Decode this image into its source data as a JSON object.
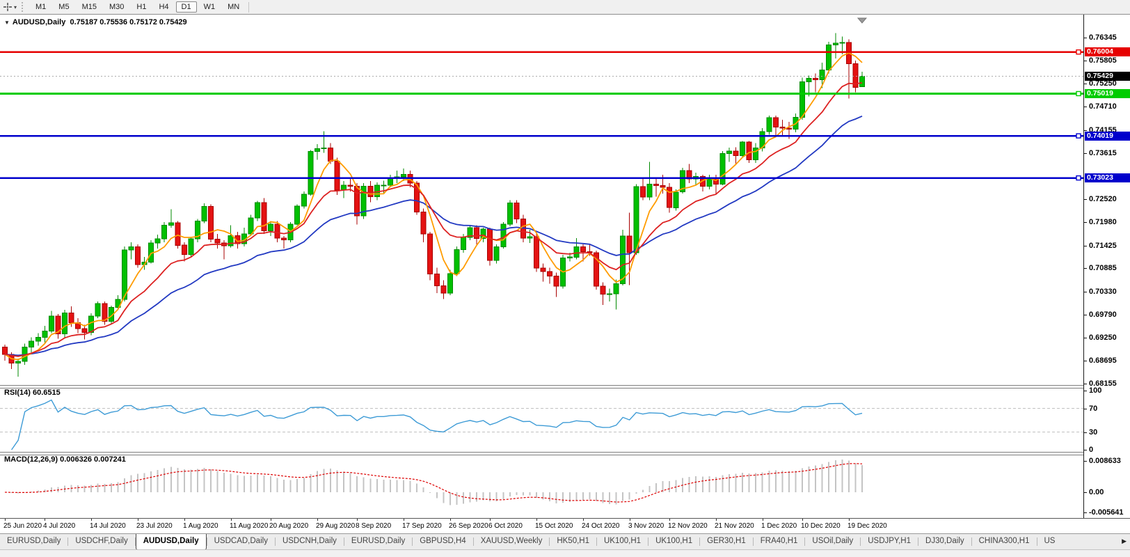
{
  "toolbar": {
    "tool_icon": "chart-crosshair",
    "dropdown_icon": "▾",
    "timeframes": [
      "M1",
      "M5",
      "M15",
      "M30",
      "H1",
      "H4",
      "D1",
      "W1",
      "MN"
    ],
    "active_timeframe": "D1"
  },
  "chart": {
    "collapse_icon": "▼",
    "title": "AUDUSD,Daily",
    "ohlc_text": "0.75187 0.75536 0.75172 0.75429",
    "scroll_marker_color": "#999999",
    "current_price": {
      "price": 0.75429,
      "label": "0.75429",
      "badge_color": "#000000",
      "text_color": "#ffffff",
      "line_color": "#aaaaaa"
    },
    "hlines": [
      {
        "price": 0.76004,
        "label": "0.76004",
        "color": "#e60000",
        "text_color": "#ffffff"
      },
      {
        "price": 0.75019,
        "label": "0.75019",
        "color": "#00cc00",
        "text_color": "#ffffff"
      },
      {
        "price": 0.74019,
        "label": "0.74019",
        "color": "#0000cc",
        "text_color": "#ffffff"
      },
      {
        "price": 0.73023,
        "label": "0.73023",
        "color": "#0000cc",
        "text_color": "#ffffff"
      }
    ]
  },
  "rsi": {
    "name": "RSI(14)",
    "value": "60.6515",
    "period": 14,
    "line_color": "#3d9bd6",
    "level_color": "#c0c0c0",
    "levels": [
      70,
      30
    ],
    "axis_ticks": [
      {
        "v": 100,
        "label": "100"
      },
      {
        "v": 70,
        "label": "70"
      },
      {
        "v": 30,
        "label": "30"
      },
      {
        "v": 0,
        "label": "0"
      }
    ]
  },
  "macd": {
    "name": "MACD(12,26,9)",
    "values": "0.006326 0.007241",
    "fast": 12,
    "slow": 26,
    "signal": 9,
    "histogram_color": "#c4c4c4",
    "signal_color": "#dd0000",
    "axis_ticks": [
      {
        "v": 0.008633,
        "label": "0.008633"
      },
      {
        "v": 0,
        "label": "0.00"
      },
      {
        "v": -0.005641,
        "label": "-0.005641"
      }
    ]
  },
  "chart_data": {
    "type": "candlestick",
    "symbol": "AUDUSD",
    "timeframe": "Daily",
    "title": "AUDUSD,Daily",
    "ohlc_current": {
      "open": 0.75187,
      "high": 0.75536,
      "low": 0.75172,
      "close": 0.75429
    },
    "ylim": [
      0.68,
      0.7687
    ],
    "y_ticks": [
      0.76345,
      0.75805,
      0.7525,
      0.7471,
      0.74155,
      0.73615,
      0.7252,
      0.7198,
      0.71425,
      0.70885,
      0.7033,
      0.6979,
      0.6925,
      0.68695,
      0.68155
    ],
    "colors": {
      "bull": "#00c000",
      "bull_border": "#008a00",
      "bear": "#e41212",
      "bear_border": "#a80000",
      "ma_fast": "#ff9c00",
      "ma_mid": "#dd2222",
      "ma_slow": "#2239c2"
    },
    "moving_averages": [
      {
        "name": "fast",
        "type": "sma",
        "period": 5,
        "color_key": "ma_fast"
      },
      {
        "name": "mid",
        "type": "ema",
        "period": 13,
        "color_key": "ma_mid"
      },
      {
        "name": "slow",
        "type": "ema",
        "period": 28,
        "color_key": "ma_slow"
      }
    ],
    "x_labels": [
      {
        "label": "25 Jun 2020",
        "i": 0
      },
      {
        "label": "4 Jul 2020",
        "i": 6
      },
      {
        "label": "14 Jul 2020",
        "i": 13
      },
      {
        "label": "23 Jul 2020",
        "i": 20
      },
      {
        "label": "1 Aug 2020",
        "i": 27
      },
      {
        "label": "11 Aug 2020",
        "i": 34
      },
      {
        "label": "20 Aug 2020",
        "i": 40
      },
      {
        "label": "29 Aug 2020",
        "i": 47
      },
      {
        "label": "8 Sep 2020",
        "i": 53
      },
      {
        "label": "17 Sep 2020",
        "i": 60
      },
      {
        "label": "26 Sep 2020",
        "i": 67
      },
      {
        "label": "6 Oct 2020",
        "i": 73
      },
      {
        "label": "15 Oct 2020",
        "i": 80
      },
      {
        "label": "24 Oct 2020",
        "i": 87
      },
      {
        "label": "3 Nov 2020",
        "i": 94
      },
      {
        "label": "12 Nov 2020",
        "i": 100
      },
      {
        "label": "21 Nov 2020",
        "i": 107
      },
      {
        "label": "1 Dec 2020",
        "i": 114
      },
      {
        "label": "10 Dec 2020",
        "i": 120
      },
      {
        "label": "19 Dec 2020",
        "i": 127
      }
    ],
    "candles": [
      [
        0.6902,
        0.6908,
        0.687,
        0.6885
      ],
      [
        0.6885,
        0.689,
        0.685,
        0.6864
      ],
      [
        0.6864,
        0.6875,
        0.6832,
        0.6868
      ],
      [
        0.6868,
        0.691,
        0.686,
        0.6902
      ],
      [
        0.6902,
        0.6925,
        0.689,
        0.6916
      ],
      [
        0.6916,
        0.6935,
        0.6905,
        0.6925
      ],
      [
        0.6925,
        0.6952,
        0.691,
        0.694
      ],
      [
        0.694,
        0.6988,
        0.6935,
        0.6975
      ],
      [
        0.6975,
        0.698,
        0.6922,
        0.6933
      ],
      [
        0.6933,
        0.699,
        0.6925,
        0.6983
      ],
      [
        0.6983,
        0.6998,
        0.695,
        0.696
      ],
      [
        0.696,
        0.697,
        0.6935,
        0.6946
      ],
      [
        0.6946,
        0.6955,
        0.692,
        0.6937
      ],
      [
        0.6937,
        0.6982,
        0.693,
        0.6975
      ],
      [
        0.6975,
        0.701,
        0.697,
        0.7005
      ],
      [
        0.7005,
        0.701,
        0.6955,
        0.6963
      ],
      [
        0.6963,
        0.7,
        0.6958,
        0.6996
      ],
      [
        0.6996,
        0.7025,
        0.699,
        0.7015
      ],
      [
        0.7015,
        0.714,
        0.701,
        0.7132
      ],
      [
        0.7132,
        0.715,
        0.711,
        0.7139
      ],
      [
        0.7139,
        0.7145,
        0.709,
        0.7097
      ],
      [
        0.7097,
        0.7115,
        0.7085,
        0.7103
      ],
      [
        0.7103,
        0.7155,
        0.71,
        0.7148
      ],
      [
        0.7148,
        0.7168,
        0.7135,
        0.7158
      ],
      [
        0.7158,
        0.7198,
        0.715,
        0.719
      ],
      [
        0.719,
        0.7228,
        0.7185,
        0.7196
      ],
      [
        0.7196,
        0.72,
        0.7135,
        0.7143
      ],
      [
        0.7143,
        0.715,
        0.7105,
        0.7121
      ],
      [
        0.7121,
        0.7163,
        0.7115,
        0.7158
      ],
      [
        0.7158,
        0.7205,
        0.715,
        0.72
      ],
      [
        0.72,
        0.7242,
        0.7195,
        0.7235
      ],
      [
        0.7235,
        0.724,
        0.715,
        0.7157
      ],
      [
        0.7157,
        0.717,
        0.7135,
        0.7148
      ],
      [
        0.7148,
        0.7155,
        0.711,
        0.7142
      ],
      [
        0.7142,
        0.719,
        0.7138,
        0.7166
      ],
      [
        0.7166,
        0.7175,
        0.7135,
        0.7147
      ],
      [
        0.7147,
        0.7185,
        0.714,
        0.717
      ],
      [
        0.717,
        0.7215,
        0.7165,
        0.7208
      ],
      [
        0.7208,
        0.7248,
        0.72,
        0.7244
      ],
      [
        0.7244,
        0.7255,
        0.717,
        0.7177
      ],
      [
        0.7177,
        0.72,
        0.7165,
        0.7193
      ],
      [
        0.7193,
        0.72,
        0.715,
        0.716
      ],
      [
        0.716,
        0.7165,
        0.7135,
        0.7156
      ],
      [
        0.7156,
        0.7198,
        0.715,
        0.7193
      ],
      [
        0.7193,
        0.724,
        0.719,
        0.7236
      ],
      [
        0.7236,
        0.727,
        0.723,
        0.7264
      ],
      [
        0.7264,
        0.7368,
        0.726,
        0.7365
      ],
      [
        0.7365,
        0.7382,
        0.7345,
        0.7372
      ],
      [
        0.7372,
        0.7413,
        0.7362,
        0.7373
      ],
      [
        0.7373,
        0.7385,
        0.7335,
        0.7342
      ],
      [
        0.7342,
        0.735,
        0.7262,
        0.7274
      ],
      [
        0.7274,
        0.7295,
        0.7255,
        0.7285
      ],
      [
        0.7285,
        0.73,
        0.727,
        0.7283
      ],
      [
        0.7283,
        0.729,
        0.7192,
        0.7213
      ],
      [
        0.7213,
        0.729,
        0.7205,
        0.7283
      ],
      [
        0.7283,
        0.7295,
        0.7245,
        0.7258
      ],
      [
        0.7258,
        0.7292,
        0.725,
        0.7285
      ],
      [
        0.7285,
        0.7296,
        0.7265,
        0.7285
      ],
      [
        0.7285,
        0.731,
        0.728,
        0.7302
      ],
      [
        0.7302,
        0.732,
        0.729,
        0.7305
      ],
      [
        0.7305,
        0.7325,
        0.7295,
        0.7311
      ],
      [
        0.7311,
        0.732,
        0.728,
        0.729
      ],
      [
        0.729,
        0.7295,
        0.7215,
        0.7222
      ],
      [
        0.7222,
        0.723,
        0.715,
        0.717
      ],
      [
        0.717,
        0.7175,
        0.706,
        0.7075
      ],
      [
        0.7075,
        0.709,
        0.703,
        0.7047
      ],
      [
        0.7047,
        0.706,
        0.7016,
        0.703
      ],
      [
        0.703,
        0.7085,
        0.7025,
        0.7076
      ],
      [
        0.7076,
        0.714,
        0.707,
        0.7133
      ],
      [
        0.7133,
        0.717,
        0.7125,
        0.7162
      ],
      [
        0.7162,
        0.719,
        0.7155,
        0.7185
      ],
      [
        0.7185,
        0.719,
        0.7145,
        0.7159
      ],
      [
        0.7159,
        0.7185,
        0.715,
        0.7181
      ],
      [
        0.7181,
        0.7185,
        0.7095,
        0.7107
      ],
      [
        0.7107,
        0.7145,
        0.71,
        0.7139
      ],
      [
        0.7139,
        0.7198,
        0.7135,
        0.7193
      ],
      [
        0.7193,
        0.725,
        0.7188,
        0.7243
      ],
      [
        0.7243,
        0.725,
        0.7195,
        0.7205
      ],
      [
        0.7205,
        0.7215,
        0.715,
        0.716
      ],
      [
        0.716,
        0.718,
        0.7148,
        0.7163
      ],
      [
        0.7163,
        0.717,
        0.708,
        0.7089
      ],
      [
        0.7089,
        0.71,
        0.7057,
        0.7081
      ],
      [
        0.7081,
        0.709,
        0.7052,
        0.707
      ],
      [
        0.707,
        0.7078,
        0.7021,
        0.7046
      ],
      [
        0.7046,
        0.712,
        0.704,
        0.7113
      ],
      [
        0.7113,
        0.7125,
        0.7105,
        0.7115
      ],
      [
        0.7115,
        0.716,
        0.711,
        0.7139
      ],
      [
        0.7139,
        0.7145,
        0.7105,
        0.7128
      ],
      [
        0.7128,
        0.7145,
        0.7118,
        0.7125
      ],
      [
        0.7125,
        0.713,
        0.7038,
        0.7046
      ],
      [
        0.7046,
        0.7055,
        0.7002,
        0.7027
      ],
      [
        0.7027,
        0.704,
        0.701,
        0.7028
      ],
      [
        0.7028,
        0.7062,
        0.6991,
        0.7052
      ],
      [
        0.7052,
        0.718,
        0.7048,
        0.7165
      ],
      [
        0.7165,
        0.722,
        0.7049,
        0.7125
      ],
      [
        0.7125,
        0.7288,
        0.712,
        0.7282
      ],
      [
        0.7282,
        0.73,
        0.725,
        0.7257
      ],
      [
        0.7257,
        0.734,
        0.725,
        0.7288
      ],
      [
        0.7288,
        0.73,
        0.7258,
        0.7284
      ],
      [
        0.7284,
        0.731,
        0.7265,
        0.728
      ],
      [
        0.728,
        0.729,
        0.722,
        0.7232
      ],
      [
        0.7232,
        0.7275,
        0.7225,
        0.7269
      ],
      [
        0.7269,
        0.7326,
        0.7265,
        0.732
      ],
      [
        0.732,
        0.7335,
        0.729,
        0.73
      ],
      [
        0.73,
        0.7315,
        0.7285,
        0.7306
      ],
      [
        0.7306,
        0.731,
        0.727,
        0.7283
      ],
      [
        0.7283,
        0.731,
        0.7275,
        0.7303
      ],
      [
        0.7303,
        0.731,
        0.7265,
        0.7288
      ],
      [
        0.7288,
        0.7366,
        0.7285,
        0.736
      ],
      [
        0.736,
        0.7374,
        0.734,
        0.7366
      ],
      [
        0.7366,
        0.7375,
        0.7335,
        0.7355
      ],
      [
        0.7355,
        0.739,
        0.735,
        0.7387
      ],
      [
        0.7387,
        0.739,
        0.7338,
        0.7345
      ],
      [
        0.7345,
        0.7385,
        0.7338,
        0.7373
      ],
      [
        0.7373,
        0.742,
        0.7365,
        0.7412
      ],
      [
        0.7412,
        0.745,
        0.7405,
        0.7445
      ],
      [
        0.7445,
        0.745,
        0.74,
        0.7423
      ],
      [
        0.7423,
        0.744,
        0.74,
        0.742
      ],
      [
        0.742,
        0.7435,
        0.7395,
        0.7418
      ],
      [
        0.7418,
        0.7455,
        0.741,
        0.7446
      ],
      [
        0.7446,
        0.754,
        0.744,
        0.753
      ],
      [
        0.753,
        0.7545,
        0.7495,
        0.7538
      ],
      [
        0.7538,
        0.755,
        0.7505,
        0.7535
      ],
      [
        0.7535,
        0.7575,
        0.7515,
        0.7558
      ],
      [
        0.7558,
        0.7625,
        0.755,
        0.7617
      ],
      [
        0.7617,
        0.7645,
        0.7585,
        0.7621
      ],
      [
        0.7621,
        0.7637,
        0.7595,
        0.7623
      ],
      [
        0.7623,
        0.763,
        0.749,
        0.7573
      ],
      [
        0.7573,
        0.758,
        0.7505,
        0.7517
      ],
      [
        0.75187,
        0.75536,
        0.75172,
        0.75429
      ]
    ]
  },
  "tabs": {
    "scroll_right_icon": "▶",
    "items": [
      {
        "label": "EURUSD,Daily",
        "active": false
      },
      {
        "label": "USDCHF,Daily",
        "active": false
      },
      {
        "label": "AUDUSD,Daily",
        "active": true
      },
      {
        "label": "USDCAD,Daily",
        "active": false
      },
      {
        "label": "USDCNH,Daily",
        "active": false
      },
      {
        "label": "EURUSD,Daily",
        "active": false
      },
      {
        "label": "GBPUSD,H4",
        "active": false
      },
      {
        "label": "XAUUSD,Weekly",
        "active": false
      },
      {
        "label": "HK50,H1",
        "active": false
      },
      {
        "label": "UK100,H1",
        "active": false
      },
      {
        "label": "UK100,H1",
        "active": false
      },
      {
        "label": "GER30,H1",
        "active": false
      },
      {
        "label": "FRA40,H1",
        "active": false
      },
      {
        "label": "USOil,Daily",
        "active": false
      },
      {
        "label": "USDJPY,H1",
        "active": false
      },
      {
        "label": "DJ30,Daily",
        "active": false
      },
      {
        "label": "CHINA300,H1",
        "active": false
      },
      {
        "label": "US",
        "active": false,
        "truncated": true
      }
    ]
  }
}
